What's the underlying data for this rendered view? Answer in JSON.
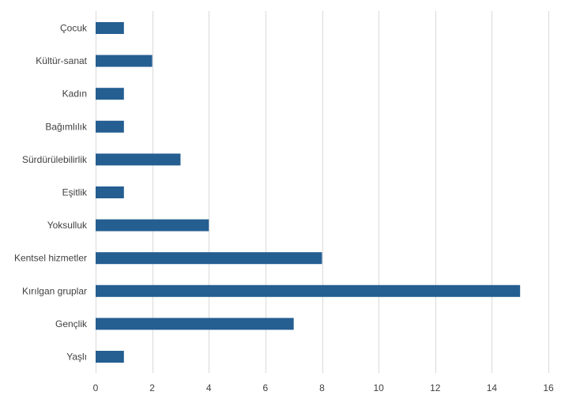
{
  "chart_data": {
    "type": "bar",
    "orientation": "horizontal",
    "categories": [
      "Çocuk",
      "Kültür-sanat",
      "Kadın",
      "Bağımlılık",
      "Sürdürülebilirlik",
      "Eşitlik",
      "Yoksulluk",
      "Kentsel hizmetler",
      "Kırılgan gruplar",
      "Gençlik",
      "Yaşlı"
    ],
    "values": [
      1,
      2,
      1,
      1,
      3,
      1,
      4,
      8,
      15,
      7,
      1
    ],
    "xlim": [
      0,
      16
    ],
    "xticks": [
      0,
      2,
      4,
      6,
      8,
      10,
      12,
      14,
      16
    ],
    "grid": "vertical",
    "legend": "none",
    "colors": {
      "bar": "#255e91",
      "grid": "#d9d9d9",
      "text": "#404040"
    }
  }
}
